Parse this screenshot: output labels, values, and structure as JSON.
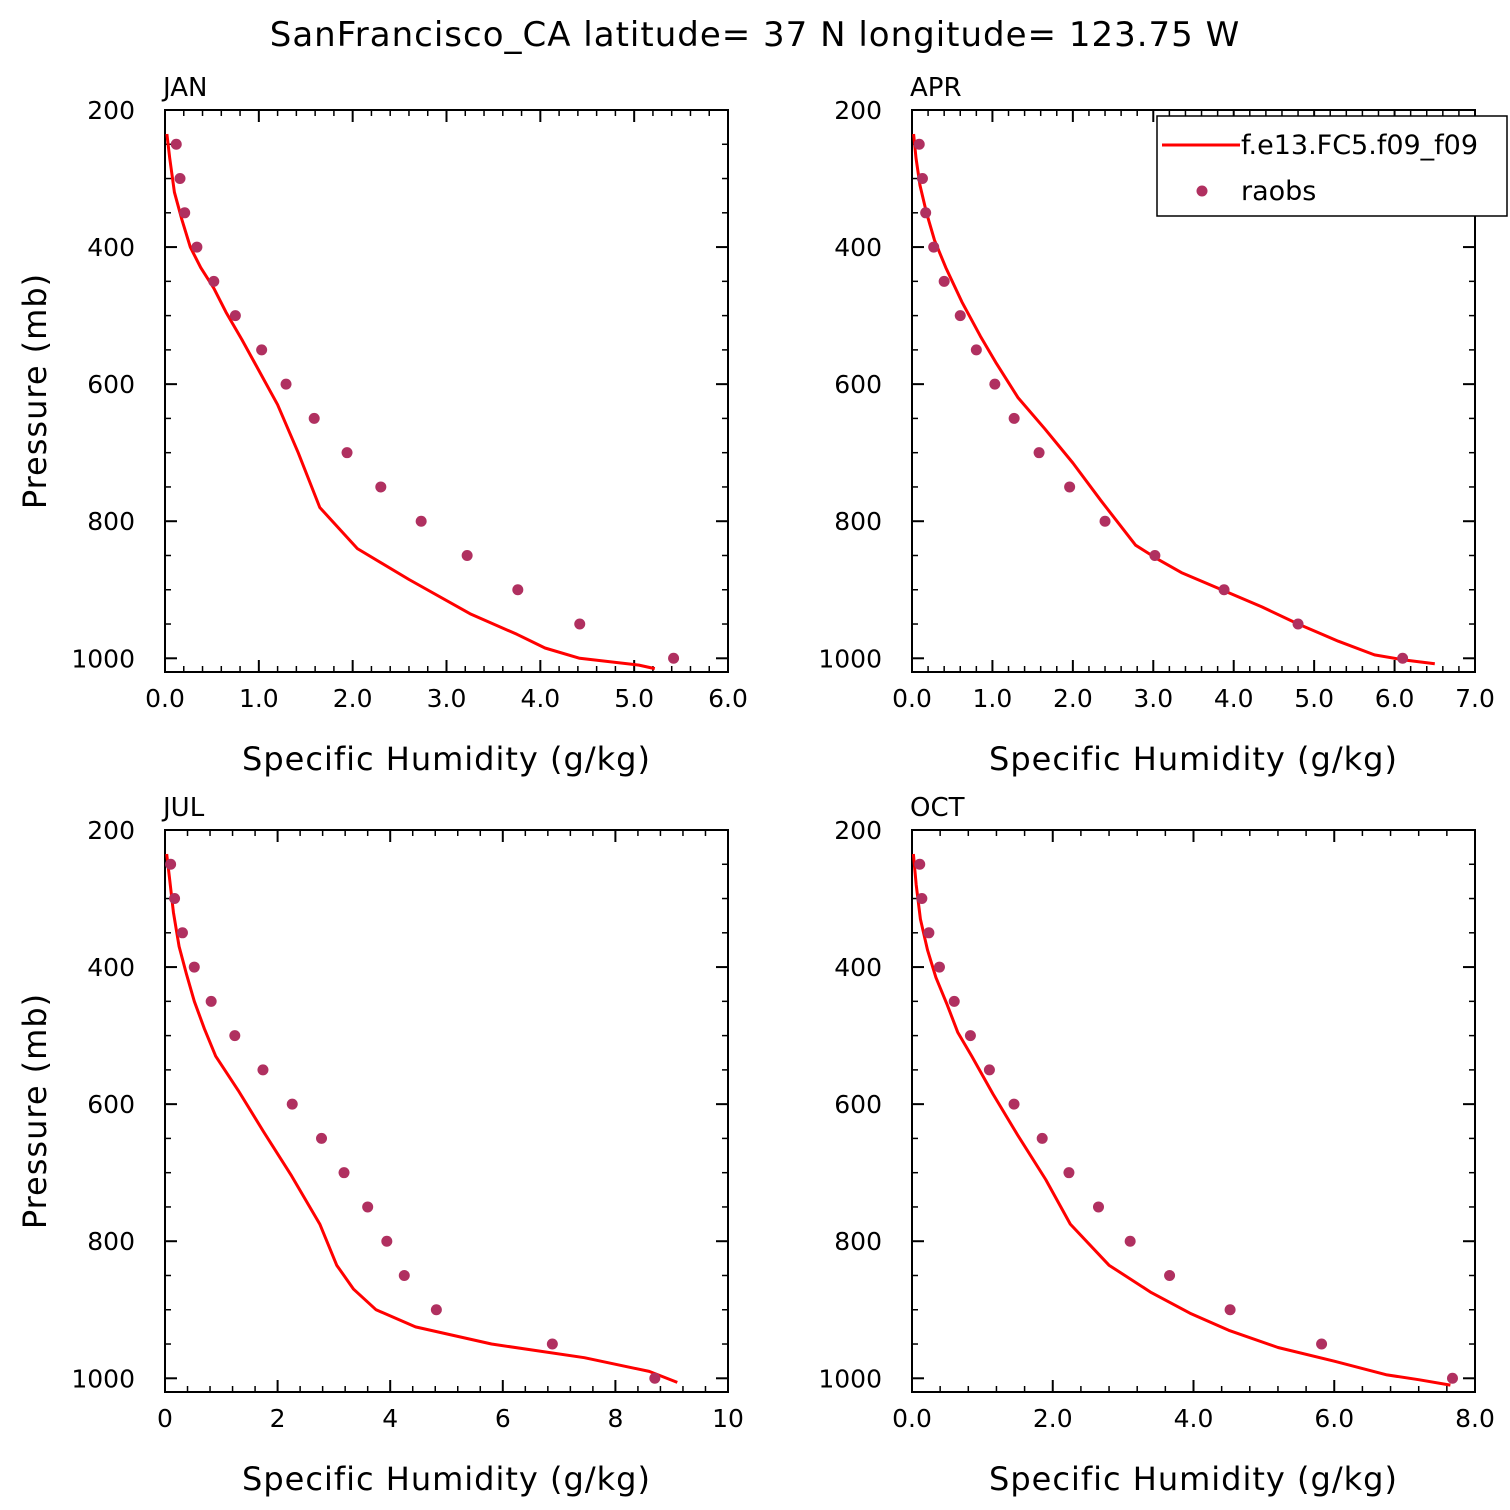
{
  "title": "SanFrancisco_CA  latitude= 37 N longitude= 123.75 W",
  "legend": {
    "model_label": "f.e13.FC5.f09_f09",
    "obs_label": "raobs",
    "model_color": "#ff0000",
    "obs_color": "#b03060"
  },
  "chart_data": [
    {
      "type": "line",
      "panel": "JAN",
      "xlabel": "Specific Humidity (g/kg)",
      "ylabel": "Pressure (mb)",
      "xlim": [
        0,
        6
      ],
      "ylim": [
        1020,
        200
      ],
      "y_inverted": true,
      "xticks": [
        0,
        1,
        2,
        3,
        4,
        5,
        6
      ],
      "xtick_labels": [
        "0.0",
        "1.0",
        "2.0",
        "3.0",
        "4.0",
        "5.0",
        "6.0"
      ],
      "yticks": [
        200,
        400,
        600,
        800,
        1000
      ],
      "yticks_minor": [
        250,
        300,
        350,
        450,
        500,
        550,
        650,
        700,
        750,
        850,
        900,
        950
      ],
      "series": [
        {
          "name": "f.e13.FC5.f09_f09",
          "kind": "line",
          "x": [
            0.02,
            0.05,
            0.1,
            0.18,
            0.27,
            0.38,
            0.52,
            0.65,
            0.82,
            1.0,
            1.2,
            1.42,
            1.65,
            2.05,
            2.6,
            3.25,
            3.75,
            4.05,
            4.42,
            5.05,
            5.22
          ],
          "y": [
            235,
            270,
            320,
            360,
            400,
            430,
            460,
            495,
            535,
            580,
            630,
            700,
            780,
            840,
            885,
            935,
            965,
            985,
            1000,
            1010,
            1015
          ]
        },
        {
          "name": "raobs",
          "kind": "scatter",
          "x": [
            0.12,
            0.16,
            0.21,
            0.34,
            0.52,
            0.75,
            1.03,
            1.29,
            1.59,
            1.94,
            2.3,
            2.73,
            3.22,
            3.76,
            4.42,
            5.42
          ],
          "y": [
            250,
            300,
            350,
            400,
            450,
            500,
            550,
            600,
            650,
            700,
            750,
            800,
            850,
            900,
            950,
            1000
          ]
        }
      ]
    },
    {
      "type": "line",
      "panel": "APR",
      "xlabel": "Specific Humidity (g/kg)",
      "ylabel": "",
      "xlim": [
        0,
        7
      ],
      "ylim": [
        1020,
        200
      ],
      "y_inverted": true,
      "xticks": [
        0,
        1,
        2,
        3,
        4,
        5,
        6,
        7
      ],
      "xtick_labels": [
        "0.0",
        "1.0",
        "2.0",
        "3.0",
        "4.0",
        "5.0",
        "6.0",
        "7.0"
      ],
      "yticks": [
        200,
        400,
        600,
        800,
        1000
      ],
      "yticks_minor": [
        250,
        300,
        350,
        450,
        500,
        550,
        650,
        700,
        750,
        850,
        900,
        950
      ],
      "series": [
        {
          "name": "f.e13.FC5.f09_f09",
          "kind": "line",
          "x": [
            0.02,
            0.05,
            0.1,
            0.18,
            0.28,
            0.42,
            0.62,
            0.85,
            1.05,
            1.32,
            1.65,
            2.0,
            2.35,
            2.78,
            3.05,
            3.35,
            3.85,
            4.35,
            4.8,
            5.3,
            5.75,
            6.1,
            6.5
          ],
          "y": [
            235,
            270,
            310,
            350,
            390,
            430,
            480,
            530,
            570,
            620,
            665,
            715,
            770,
            835,
            855,
            875,
            900,
            925,
            950,
            975,
            995,
            1002,
            1008
          ]
        },
        {
          "name": "raobs",
          "kind": "scatter",
          "x": [
            0.09,
            0.13,
            0.17,
            0.27,
            0.4,
            0.6,
            0.8,
            1.03,
            1.27,
            1.58,
            1.96,
            2.4,
            3.02,
            3.88,
            4.8,
            6.1
          ],
          "y": [
            250,
            300,
            350,
            400,
            450,
            500,
            550,
            600,
            650,
            700,
            750,
            800,
            850,
            900,
            950,
            1000
          ]
        }
      ]
    },
    {
      "type": "line",
      "panel": "JUL",
      "xlabel": "Specific Humidity (g/kg)",
      "ylabel": "Pressure (mb)",
      "xlim": [
        0,
        10
      ],
      "ylim": [
        1020,
        200
      ],
      "y_inverted": true,
      "xticks": [
        0,
        2,
        4,
        6,
        8,
        10
      ],
      "xtick_labels": [
        "0",
        "2",
        "4",
        "6",
        "8",
        "10"
      ],
      "yticks": [
        200,
        400,
        600,
        800,
        1000
      ],
      "yticks_minor": [
        250,
        300,
        350,
        450,
        500,
        550,
        650,
        700,
        750,
        850,
        900,
        950
      ],
      "series": [
        {
          "name": "f.e13.FC5.f09_f09",
          "kind": "line",
          "x": [
            0.03,
            0.08,
            0.15,
            0.25,
            0.38,
            0.52,
            0.7,
            0.9,
            1.3,
            1.75,
            2.25,
            2.75,
            3.05,
            3.35,
            3.75,
            4.45,
            5.8,
            7.45,
            8.6,
            9.1
          ],
          "y": [
            235,
            270,
            320,
            370,
            410,
            450,
            490,
            530,
            580,
            640,
            705,
            775,
            835,
            870,
            900,
            925,
            950,
            970,
            990,
            1006
          ]
        },
        {
          "name": "raobs",
          "kind": "scatter",
          "x": [
            0.1,
            0.17,
            0.31,
            0.52,
            0.82,
            1.24,
            1.74,
            2.26,
            2.78,
            3.18,
            3.6,
            3.94,
            4.25,
            4.82,
            6.88,
            8.7
          ],
          "y": [
            250,
            300,
            350,
            400,
            450,
            500,
            550,
            600,
            650,
            700,
            750,
            800,
            850,
            900,
            950,
            1000
          ]
        }
      ]
    },
    {
      "type": "line",
      "panel": "OCT",
      "xlabel": "Specific Humidity (g/kg)",
      "ylabel": "",
      "xlim": [
        0,
        8
      ],
      "ylim": [
        1020,
        200
      ],
      "y_inverted": true,
      "xticks": [
        0,
        2,
        4,
        6,
        8
      ],
      "xtick_labels": [
        "0.0",
        "2.0",
        "4.0",
        "6.0",
        "8.0"
      ],
      "yticks": [
        200,
        400,
        600,
        800,
        1000
      ],
      "yticks_minor": [
        250,
        300,
        350,
        450,
        500,
        550,
        650,
        700,
        750,
        850,
        900,
        950
      ],
      "series": [
        {
          "name": "f.e13.FC5.f09_f09",
          "kind": "line",
          "x": [
            0.02,
            0.06,
            0.12,
            0.22,
            0.34,
            0.5,
            0.65,
            0.85,
            1.15,
            1.5,
            1.9,
            2.25,
            2.8,
            3.4,
            3.95,
            4.5,
            5.2,
            6.0,
            6.75,
            7.2,
            7.65
          ],
          "y": [
            235,
            280,
            330,
            375,
            415,
            455,
            495,
            530,
            585,
            645,
            710,
            775,
            835,
            875,
            905,
            930,
            955,
            975,
            995,
            1002,
            1010
          ]
        },
        {
          "name": "raobs",
          "kind": "scatter",
          "x": [
            0.11,
            0.14,
            0.24,
            0.39,
            0.6,
            0.83,
            1.1,
            1.45,
            1.85,
            2.23,
            2.65,
            3.1,
            3.66,
            4.52,
            5.82,
            7.68
          ],
          "y": [
            250,
            300,
            350,
            400,
            450,
            500,
            550,
            600,
            650,
            700,
            750,
            800,
            850,
            900,
            950,
            1000
          ]
        }
      ]
    }
  ]
}
